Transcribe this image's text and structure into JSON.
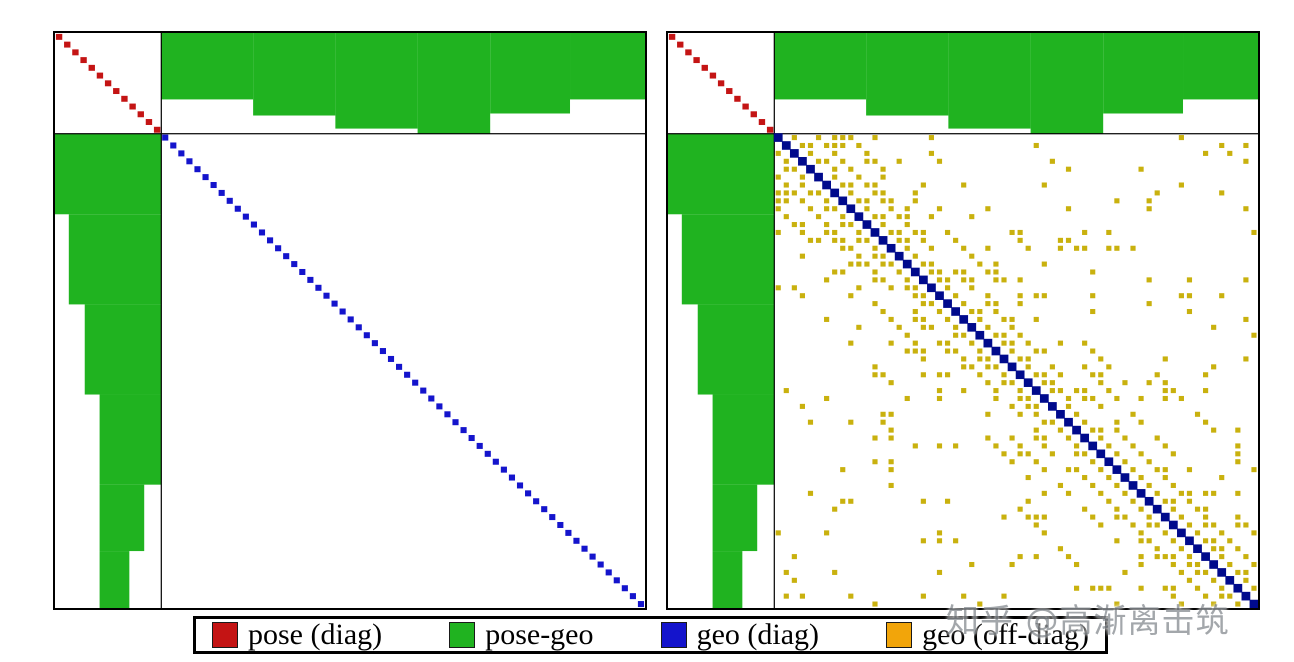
{
  "watermark": "知乎 @高渐离击筑",
  "legend": {
    "items": [
      {
        "label": "pose (diag)",
        "color": "#c41414"
      },
      {
        "label": "pose-geo",
        "color": "#20b320"
      },
      {
        "label": "geo (diag)",
        "color": "#1414cc"
      },
      {
        "label": "geo (off-diag)",
        "color": "#f2a50a"
      }
    ]
  },
  "chart_data": {
    "type": "heatmap",
    "subtype": "matrix-sparsity",
    "title": "",
    "legend_entries": [
      "pose (diag)",
      "pose-geo",
      "geo (diag)",
      "geo (off-diag)"
    ],
    "matrix": {
      "pose_count": 13,
      "geo_count": 60,
      "pose_fraction_w": 0.18,
      "pose_fraction_h": 0.175
    },
    "colors": {
      "pose_diag": "#c41414",
      "pose_geo": "#20b320",
      "geo_diag": "#1414cc",
      "geo_diag_band": "#000a8c",
      "geo_offdiag": "#c9b10e",
      "grid_line": "#000000"
    },
    "pose_geo_top_rects": [
      {
        "u0": 0.0,
        "u1": 0.19,
        "v0": 0,
        "v1": 0.66
      },
      {
        "u0": 0.19,
        "u1": 0.36,
        "v0": 0,
        "v1": 0.82
      },
      {
        "u0": 0.36,
        "u1": 0.53,
        "v0": 0,
        "v1": 0.95
      },
      {
        "u0": 0.53,
        "u1": 0.68,
        "v0": 0,
        "v1": 1.0
      },
      {
        "u0": 0.68,
        "u1": 0.845,
        "v0": 0,
        "v1": 0.8
      },
      {
        "u0": 0.845,
        "u1": 1.0,
        "v0": 0,
        "v1": 0.66
      }
    ],
    "pose_geo_left_rects": [
      {
        "v0": 0.0,
        "v1": 0.17,
        "u0": 0.0,
        "u1": 1.0
      },
      {
        "v0": 0.17,
        "v1": 0.36,
        "u0": 0.13,
        "u1": 1.0
      },
      {
        "v0": 0.36,
        "v1": 0.55,
        "u0": 0.28,
        "u1": 1.0
      },
      {
        "v0": 0.55,
        "v1": 0.74,
        "u0": 0.42,
        "u1": 1.0
      },
      {
        "v0": 0.74,
        "v1": 0.88,
        "u0": 0.42,
        "u1": 0.84
      },
      {
        "v0": 0.88,
        "v1": 1.0,
        "u0": 0.42,
        "u1": 0.7
      }
    ],
    "panels": [
      {
        "name": "geo-block-diagonal-only",
        "blue": {
          "offsets": [
            0
          ],
          "style": "squares"
        },
        "yellow": null
      },
      {
        "name": "geo-block-with-offdiag-fill-in",
        "blue": {
          "offsets": [
            0
          ],
          "style": "band"
        },
        "yellow": {
          "seed": 11,
          "bands": [
            {
              "o": 2,
              "d": 0.85
            },
            {
              "o": 3,
              "d": 0.45
            },
            {
              "o": 5,
              "d": 0.8
            },
            {
              "o": 6,
              "d": 0.3
            },
            {
              "o": 9,
              "d": 0.5
            },
            {
              "o": 12,
              "d": 0.3
            },
            {
              "o": 17,
              "d": 0.22
            }
          ],
          "scatter_density": 0.05,
          "scatter_min_offset": 4
        }
      }
    ]
  }
}
